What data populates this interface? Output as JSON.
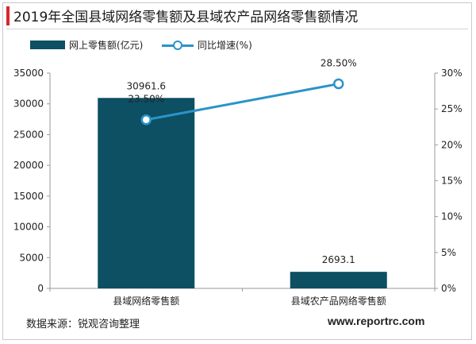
{
  "header": {
    "title": "2019年全国县域网络零售额及县域农产品网络零售额情况"
  },
  "footer": {
    "source": "数据来源：锐观咨询整理",
    "watermark": "www.reportrc.com"
  },
  "colors": {
    "accent": "#d7262e",
    "bar": "#0d4f63",
    "line": "#2b93c9"
  },
  "chart_data": {
    "type": "bar",
    "categories": [
      "县域网络零售额",
      "县域农产品网络零售额"
    ],
    "series": [
      {
        "name": "网上零售额(亿元)",
        "type": "bar",
        "axis": "left",
        "values": [
          30961.6,
          2693.1
        ],
        "labels": [
          "30961.6",
          "2693.1"
        ]
      },
      {
        "name": "同比增速(%)",
        "type": "line",
        "axis": "right",
        "values": [
          23.5,
          28.5
        ],
        "labels": [
          "23.50%",
          "28.50%"
        ]
      }
    ],
    "y_left": {
      "min": 0,
      "max": 35000,
      "step": 5000,
      "ticks": [
        "0",
        "5000",
        "10000",
        "15000",
        "20000",
        "25000",
        "30000",
        "35000"
      ]
    },
    "y_right": {
      "min": 0,
      "max": 30,
      "step": 5,
      "ticks": [
        "0%",
        "5%",
        "10%",
        "15%",
        "20%",
        "25%",
        "30%"
      ]
    },
    "grid": false,
    "legend": "top-left"
  }
}
